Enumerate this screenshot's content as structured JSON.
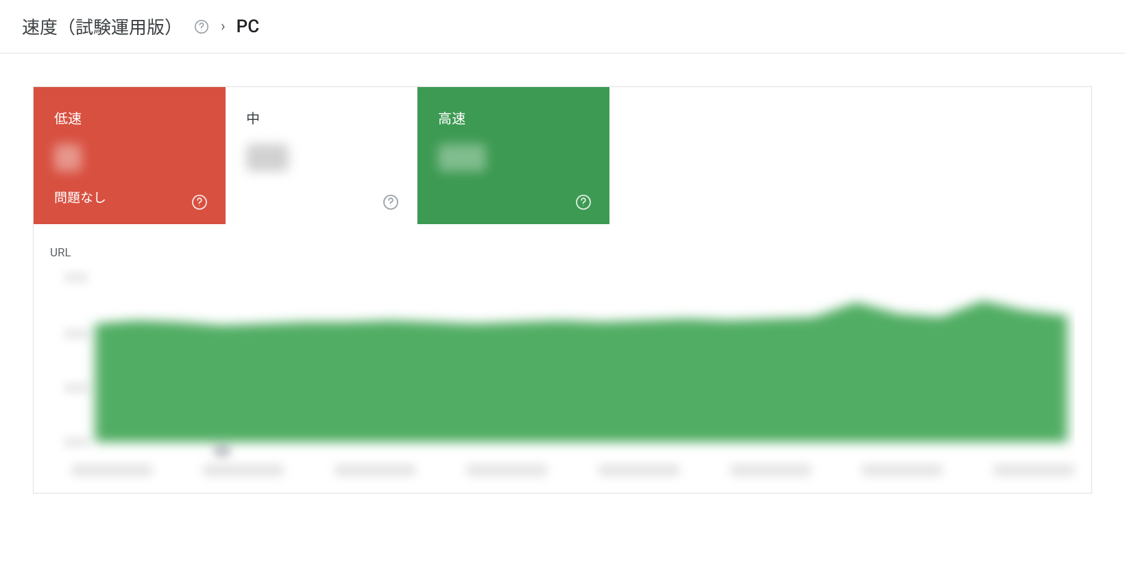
{
  "header": {
    "title": "速度（試験運用版）",
    "breadcrumb_current": "PC"
  },
  "tabs": [
    {
      "key": "slow",
      "label": "低速",
      "status": "問題なし",
      "bg_color": "#d85040",
      "text_color": "#ffffff"
    },
    {
      "key": "medium",
      "label": "中",
      "status": "",
      "bg_color": "#ffffff",
      "text_color": "#3c4043"
    },
    {
      "key": "fast",
      "label": "高速",
      "status": "",
      "bg_color": "#3d9a52",
      "text_color": "#ffffff"
    }
  ],
  "chart": {
    "title": "URL",
    "type": "area",
    "series_color": "#51ad64",
    "background_color": "#ffffff",
    "ylim": [
      0,
      100
    ],
    "y_ticks": [
      0,
      33,
      66,
      100
    ],
    "x_count": 8,
    "values": [
      72,
      74,
      73,
      71,
      72,
      73,
      73,
      74,
      73,
      72,
      73,
      74,
      73,
      74,
      75,
      74,
      75,
      76,
      85,
      78,
      76,
      86,
      80,
      77
    ],
    "marker_index": 3
  },
  "colors": {
    "border": "#e0e0e0",
    "text_primary": "#202124",
    "text_secondary": "#5f6368",
    "icon": "#9aa0a6"
  }
}
